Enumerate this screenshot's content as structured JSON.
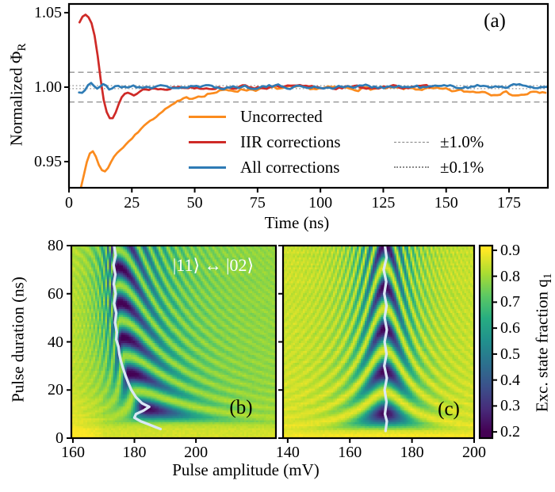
{
  "figure": {
    "panel_labels": {
      "a": "(a)",
      "b": "(b)",
      "c": "(c)"
    }
  },
  "chart_data": [
    {
      "id": "a",
      "type": "line",
      "xlabel": "Time (ns)",
      "ylabel": {
        "text": "Normalized Φ",
        "sub": "R"
      },
      "xlim": [
        0,
        190.5
      ],
      "ylim": [
        0.9324,
        1.0559
      ],
      "xticks": [
        0,
        25,
        50,
        75,
        100,
        125,
        150,
        175
      ],
      "yticks": [
        0.95,
        1.0,
        1.05
      ],
      "ytick_labels": [
        "0.95",
        "1.00",
        "1.05"
      ],
      "grid": false,
      "legend_position": "lower center",
      "reference_lines": {
        "dashed": {
          "values": [
            1.01,
            0.99
          ],
          "label": "±1.0%",
          "color": "#7f7f7f"
        },
        "dotted": {
          "values": [
            1.001,
            0.999
          ],
          "label": "±0.1%",
          "color": "#909090"
        }
      },
      "series": [
        {
          "name": "Uncorrected",
          "color": "#fb8b1e",
          "noise": 0.0016,
          "noise_from": 40,
          "seed": 7,
          "keypoints": [
            [
              3.5,
              0.925
            ],
            [
              5,
              0.9345
            ],
            [
              6,
              0.9415
            ],
            [
              7,
              0.949
            ],
            [
              8,
              0.9545
            ],
            [
              9,
              0.9575
            ],
            [
              10,
              0.9565
            ],
            [
              11,
              0.952
            ],
            [
              12,
              0.9475
            ],
            [
              13,
              0.9445
            ],
            [
              14,
              0.943
            ],
            [
              15,
              0.944
            ],
            [
              16,
              0.9475
            ],
            [
              17,
              0.951
            ],
            [
              18,
              0.9535
            ],
            [
              19,
              0.9555
            ],
            [
              20,
              0.9575
            ],
            [
              21,
              0.9585
            ],
            [
              22,
              0.9605
            ],
            [
              23,
              0.9625
            ],
            [
              24,
              0.964
            ],
            [
              25,
              0.9655
            ],
            [
              26,
              0.9675
            ],
            [
              27,
              0.969
            ],
            [
              28,
              0.9705
            ],
            [
              29,
              0.9725
            ],
            [
              30,
              0.9745
            ],
            [
              31,
              0.976
            ],
            [
              32,
              0.9775
            ],
            [
              33,
              0.9785
            ],
            [
              34,
              0.979
            ],
            [
              35,
              0.9805
            ],
            [
              36,
              0.982
            ],
            [
              37,
              0.9835
            ],
            [
              38,
              0.985
            ],
            [
              40,
              0.987
            ],
            [
              42,
              0.9885
            ],
            [
              44,
              0.99
            ],
            [
              46,
              0.9915
            ],
            [
              48,
              0.9925
            ],
            [
              50,
              0.9935
            ],
            [
              53,
              0.995
            ],
            [
              56,
              0.996
            ],
            [
              60,
              0.997
            ],
            [
              65,
              0.998
            ],
            [
              70,
              0.9985
            ],
            [
              80,
              0.999
            ],
            [
              90,
              0.9993
            ],
            [
              100,
              0.999
            ],
            [
              110,
              0.9993
            ],
            [
              120,
              0.999
            ],
            [
              130,
              0.9988
            ],
            [
              140,
              0.999
            ],
            [
              148,
              0.998
            ],
            [
              152,
              0.9975
            ],
            [
              156,
              0.9972
            ],
            [
              160,
              0.9968
            ],
            [
              164,
              0.9975
            ],
            [
              168,
              0.996
            ],
            [
              172,
              0.9968
            ],
            [
              176,
              0.9955
            ],
            [
              180,
              0.9945
            ],
            [
              184,
              0.9965
            ],
            [
              187,
              0.9955
            ],
            [
              190,
              0.996
            ]
          ]
        },
        {
          "name": "IIR corrections",
          "color": "#cf2a27",
          "noise": 0.0014,
          "noise_from": 26,
          "seed": 13,
          "keypoints": [
            [
              4.2,
              1.0435
            ],
            [
              5,
              1.0465
            ],
            [
              6,
              1.0487
            ],
            [
              6.8,
              1.049
            ],
            [
              7.6,
              1.0478
            ],
            [
              8.4,
              1.0455
            ],
            [
              9.2,
              1.0425
            ],
            [
              10,
              1.037
            ],
            [
              10.8,
              1.029
            ],
            [
              11.6,
              1.019
            ],
            [
              12.4,
              1.008
            ],
            [
              13.2,
              0.9975
            ],
            [
              14,
              0.9895
            ],
            [
              14.8,
              0.984
            ],
            [
              15.6,
              0.9805
            ],
            [
              16.4,
              0.9785
            ],
            [
              17.2,
              0.9785
            ],
            [
              18,
              0.9805
            ],
            [
              18.8,
              0.984
            ],
            [
              19.6,
              0.988
            ],
            [
              20.4,
              0.9915
            ],
            [
              21.2,
              0.994
            ],
            [
              22,
              0.9955
            ],
            [
              23,
              0.9965
            ],
            [
              24,
              0.996
            ],
            [
              25,
              0.995
            ],
            [
              26,
              0.9945
            ],
            [
              27,
              0.9955
            ],
            [
              28,
              0.997
            ],
            [
              29,
              0.998
            ],
            [
              30,
              0.9985
            ],
            [
              32,
              0.999
            ],
            [
              34,
              0.9992
            ],
            [
              36,
              0.9995
            ],
            [
              40,
              0.9998
            ],
            [
              50,
              1.0
            ],
            [
              60,
              0.9998
            ],
            [
              70,
              1.0002
            ],
            [
              80,
              1.0
            ],
            [
              90,
              1.0003
            ],
            [
              100,
              0.9997
            ],
            [
              110,
              1.0
            ],
            [
              120,
              0.9998
            ],
            [
              130,
              1.0002
            ],
            [
              140,
              1.0
            ],
            [
              145,
              1.0002
            ]
          ]
        },
        {
          "name": "All corrections",
          "color": "#2e7bb5",
          "noise": 0.0016,
          "noise_from": 18,
          "seed": 21,
          "keypoints": [
            [
              4,
              0.9965
            ],
            [
              5,
              0.996
            ],
            [
              6,
              0.997
            ],
            [
              7,
              1.0
            ],
            [
              8,
              1.0025
            ],
            [
              9,
              1.003
            ],
            [
              10,
              1.0005
            ],
            [
              11,
              0.9985
            ],
            [
              12,
              0.9995
            ],
            [
              13,
              1.0015
            ],
            [
              14,
              1.0025
            ],
            [
              15,
              1.0005
            ],
            [
              16,
              0.9985
            ],
            [
              17,
              0.999
            ],
            [
              18,
              1.0005
            ],
            [
              20,
              1.0015
            ],
            [
              22,
              1.0
            ],
            [
              25,
              1.0005
            ],
            [
              40,
              1.0
            ],
            [
              60,
              1.0
            ],
            [
              80,
              1.0005
            ],
            [
              100,
              1.0
            ],
            [
              120,
              1.0005
            ],
            [
              140,
              1.0
            ],
            [
              160,
              1.0005
            ],
            [
              175,
              1.001
            ],
            [
              190,
              1.0
            ]
          ]
        }
      ]
    },
    {
      "id": "b",
      "type": "heatmap",
      "ylabel": "Pulse duration (ns)",
      "xlim": [
        159.5,
        226
      ],
      "ylim": [
        0,
        80
      ],
      "xticks": [
        160,
        180,
        200
      ],
      "yticks": [
        0,
        20,
        40,
        60,
        80
      ],
      "annotation": "|11⟩ ↔ |02⟩",
      "model": {
        "a0_base": 174,
        "a0_drift": 17.4,
        "a0_tau": 20,
        "rabi_period_ns": 14.7,
        "time_offset_ns": 4.8,
        "detune_right": 0.038,
        "detune_left": 0.12,
        "bg": 0.8,
        "bot_boost": 0.07,
        "bot_tau": 9,
        "left_boost": 0.035,
        "left_tau": 30,
        "left_ref": 170,
        "depth": 0.62,
        "seed": 11
      },
      "trace": {
        "color": "#d9e8f5",
        "points": [
          [
            173.4,
            80
          ],
          [
            173.9,
            76
          ],
          [
            173.2,
            72
          ],
          [
            173.8,
            68
          ],
          [
            173.3,
            64
          ],
          [
            173.9,
            60
          ],
          [
            173.4,
            56
          ],
          [
            174.1,
            52
          ],
          [
            173.7,
            48
          ],
          [
            174.3,
            44
          ],
          [
            174.1,
            41
          ],
          [
            174.8,
            38
          ],
          [
            175.1,
            35
          ],
          [
            175.6,
            32
          ],
          [
            176.3,
            29
          ],
          [
            177.1,
            26
          ],
          [
            178.0,
            23
          ],
          [
            179.0,
            20
          ],
          [
            180.5,
            17
          ],
          [
            182.5,
            14.5
          ],
          [
            184.8,
            13
          ],
          [
            183.0,
            11.5
          ],
          [
            180.5,
            10
          ],
          [
            180.0,
            8.5
          ],
          [
            182.0,
            7
          ],
          [
            184.5,
            5.8
          ],
          [
            187.0,
            4.5
          ],
          [
            188.5,
            3.8
          ]
        ]
      }
    },
    {
      "id": "c",
      "type": "heatmap",
      "xlim": [
        138.5,
        200
      ],
      "ylim": [
        0,
        80
      ],
      "xticks": [
        140,
        160,
        180,
        200
      ],
      "yticks": [
        0,
        20,
        40,
        60,
        80
      ],
      "model": {
        "a0_base": 171.3,
        "a0_drift": 0,
        "a0_tau": 1,
        "rabi_period_ns": 17.5,
        "time_offset_ns": 1.5,
        "detune_right": 0.055,
        "detune_left": 0.055,
        "bg": 0.862,
        "bot_boost": 0.035,
        "bot_tau": 9,
        "left_boost": 0,
        "left_tau": 1,
        "left_ref": 0,
        "depth": 0.66,
        "seed": 12
      },
      "trace": {
        "color": "#d9e8f5",
        "points": [
          [
            171.3,
            80
          ],
          [
            171.8,
            75
          ],
          [
            170.9,
            70
          ],
          [
            171.7,
            65
          ],
          [
            171.1,
            60
          ],
          [
            171.8,
            55
          ],
          [
            171.2,
            50
          ],
          [
            171.9,
            45
          ],
          [
            171.2,
            40
          ],
          [
            171.8,
            35
          ],
          [
            171.1,
            30
          ],
          [
            171.9,
            25
          ],
          [
            171.2,
            20
          ],
          [
            171.8,
            15
          ],
          [
            171.3,
            10
          ],
          [
            171.9,
            7
          ],
          [
            171.5,
            3
          ]
        ]
      }
    },
    {
      "id": "colorbar",
      "type": "colorbar",
      "label": {
        "text": "Exc. state fraction q",
        "sub": "1"
      },
      "ticks": [
        0.2,
        0.3,
        0.4,
        0.5,
        0.6,
        0.7,
        0.8,
        0.9
      ],
      "vmin": 0.2,
      "vmax": 0.9,
      "edge_values": [
        0.176,
        0.918
      ],
      "colormap": "viridis",
      "colormap_stops": [
        "#440154",
        "#472c7a",
        "#3b518b",
        "#2c718e",
        "#21908d",
        "#27ad81",
        "#5cc863",
        "#aadc32",
        "#fde725"
      ]
    }
  ],
  "shared_xlabel": "Pulse amplitude (mV)"
}
